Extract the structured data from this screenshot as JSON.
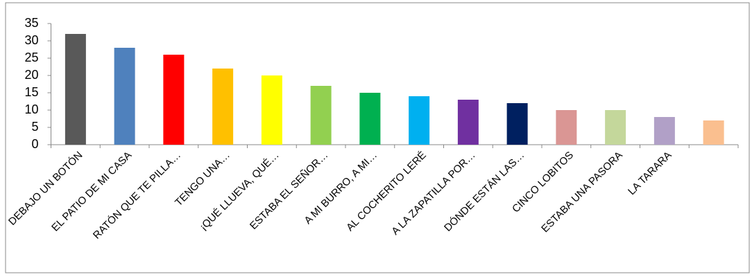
{
  "chart_data": {
    "type": "bar",
    "categories": [
      "DEBAJO UN BOTÓN",
      "EL PATIO DE MI CASA",
      "RATÓN QUE TE PILLA…",
      "TENGO UNA…",
      "¡QUÉ LLUEVA, QUÉ…",
      "ESTABA EL SEÑOR…",
      "A MI BURRO, A MI…",
      "AL COCHERITO LERÉ",
      "A LA ZAPATILLA POR…",
      "DÓNDE ESTÁN LAS…",
      "CINCO LOBITOS",
      "ESTABA UNA PASORA",
      "LA TARARA",
      null
    ],
    "values": [
      32,
      28,
      26,
      22,
      20,
      17,
      15,
      14,
      13,
      12,
      10,
      10,
      8,
      7
    ],
    "colors": [
      "#595959",
      "#4f81bd",
      "#ff0000",
      "#ffc000",
      "#ffff00",
      "#92d050",
      "#00b050",
      "#00b0f0",
      "#7030a0",
      "#002060",
      "#da9694",
      "#c4d79b",
      "#b1a0c7",
      "#fabf8f"
    ],
    "ylim": [
      0,
      35
    ],
    "yticks": [
      0,
      5,
      10,
      15,
      20,
      25,
      30,
      35
    ],
    "grid": false
  }
}
